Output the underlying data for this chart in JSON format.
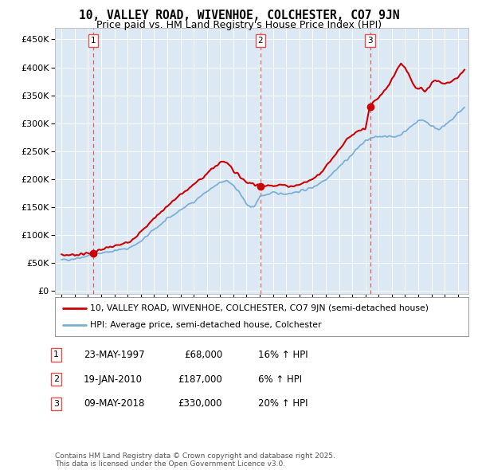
{
  "title": "10, VALLEY ROAD, WIVENHOE, COLCHESTER, CO7 9JN",
  "subtitle": "Price paid vs. HM Land Registry's House Price Index (HPI)",
  "legend_line1": "10, VALLEY ROAD, WIVENHOE, COLCHESTER, CO7 9JN (semi-detached house)",
  "legend_line2": "HPI: Average price, semi-detached house, Colchester",
  "transactions": [
    {
      "num": 1,
      "date": "23-MAY-1997",
      "price": 68000,
      "hpi_pct": "16% ↑ HPI",
      "year": 1997.39
    },
    {
      "num": 2,
      "date": "19-JAN-2010",
      "price": 187000,
      "hpi_pct": "6% ↑ HPI",
      "year": 2010.05
    },
    {
      "num": 3,
      "date": "09-MAY-2018",
      "price": 330000,
      "hpi_pct": "20% ↑ HPI",
      "year": 2018.36
    }
  ],
  "ytick_values": [
    0,
    50000,
    100000,
    150000,
    200000,
    250000,
    300000,
    350000,
    400000,
    450000
  ],
  "xlim": [
    1994.5,
    2025.8
  ],
  "ylim": [
    -5000,
    470000
  ],
  "plot_bg": "#dce9f5",
  "grid_color": "#ffffff",
  "red_line_color": "#cc0000",
  "blue_line_color": "#7bafd4",
  "dashed_line_color": "#e05050",
  "footnote": "Contains HM Land Registry data © Crown copyright and database right 2025.\nThis data is licensed under the Open Government Licence v3.0.",
  "title_fontsize": 10.5,
  "subtitle_fontsize": 9
}
